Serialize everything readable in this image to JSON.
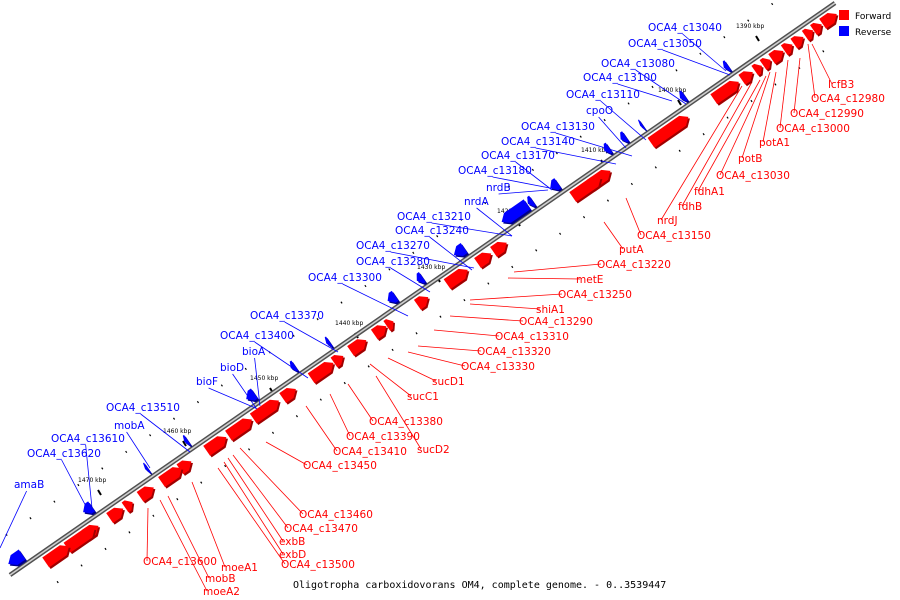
{
  "caption": "Oligotropha carboxidovorans OM4, complete genome. - 0..3539447",
  "legend": [
    {
      "label": "Forward",
      "color": "#ff0000"
    },
    {
      "label": "Reverse",
      "color": "#0000ff"
    }
  ],
  "colors": {
    "forward": "#ff0000",
    "reverse": "#0000ff",
    "backbone": "#808080"
  },
  "ticks": [
    "1390 kbp",
    "1400 kbp",
    "1410 kbp",
    "1420 kbp",
    "1430 kbp",
    "1440 kbp",
    "1450 kbp",
    "1460 kbp",
    "1470 kbp"
  ],
  "reverse_labels": [
    "OCA4_c13040",
    "OCA4_c13050",
    "OCA4_c13080",
    "OCA4_c13100",
    "OCA4_c13110",
    "cpoO",
    "OCA4_c13130",
    "OCA4_c13140",
    "OCA4_c13170",
    "OCA4_c13180",
    "nrdB",
    "nrdA",
    "OCA4_c13210",
    "OCA4_c13240",
    "OCA4_c13270",
    "OCA4_c13280",
    "OCA4_c13300",
    "OCA4_c13370",
    "OCA4_c13400",
    "bioA",
    "bioD",
    "bioF",
    "OCA4_c13510",
    "mobA",
    "OCA4_c13610",
    "OCA4_c13620",
    "amaB"
  ],
  "forward_labels": [
    "lcfB3",
    "OCA4_c12980",
    "OCA4_c12990",
    "OCA4_c13000",
    "potA1",
    "potB",
    "OCA4_c13030",
    "fdhA1",
    "fdhB",
    "nrdJ",
    "OCA4_c13150",
    "putA",
    "OCA4_c13220",
    "metE",
    "OCA4_c13250",
    "shiA1",
    "OCA4_c13290",
    "OCA4_c13310",
    "OCA4_c13320",
    "OCA4_c13330",
    "sucD1",
    "sucC1",
    "OCA4_c13380",
    "OCA4_c13390",
    "OCA4_c13410",
    "sucD2",
    "OCA4_c13450",
    "OCA4_c13460",
    "OCA4_c13470",
    "exbB",
    "exbD",
    "OCA4_c13500",
    "moeA1",
    "OCA4_c13600",
    "mobB",
    "moeA2"
  ]
}
